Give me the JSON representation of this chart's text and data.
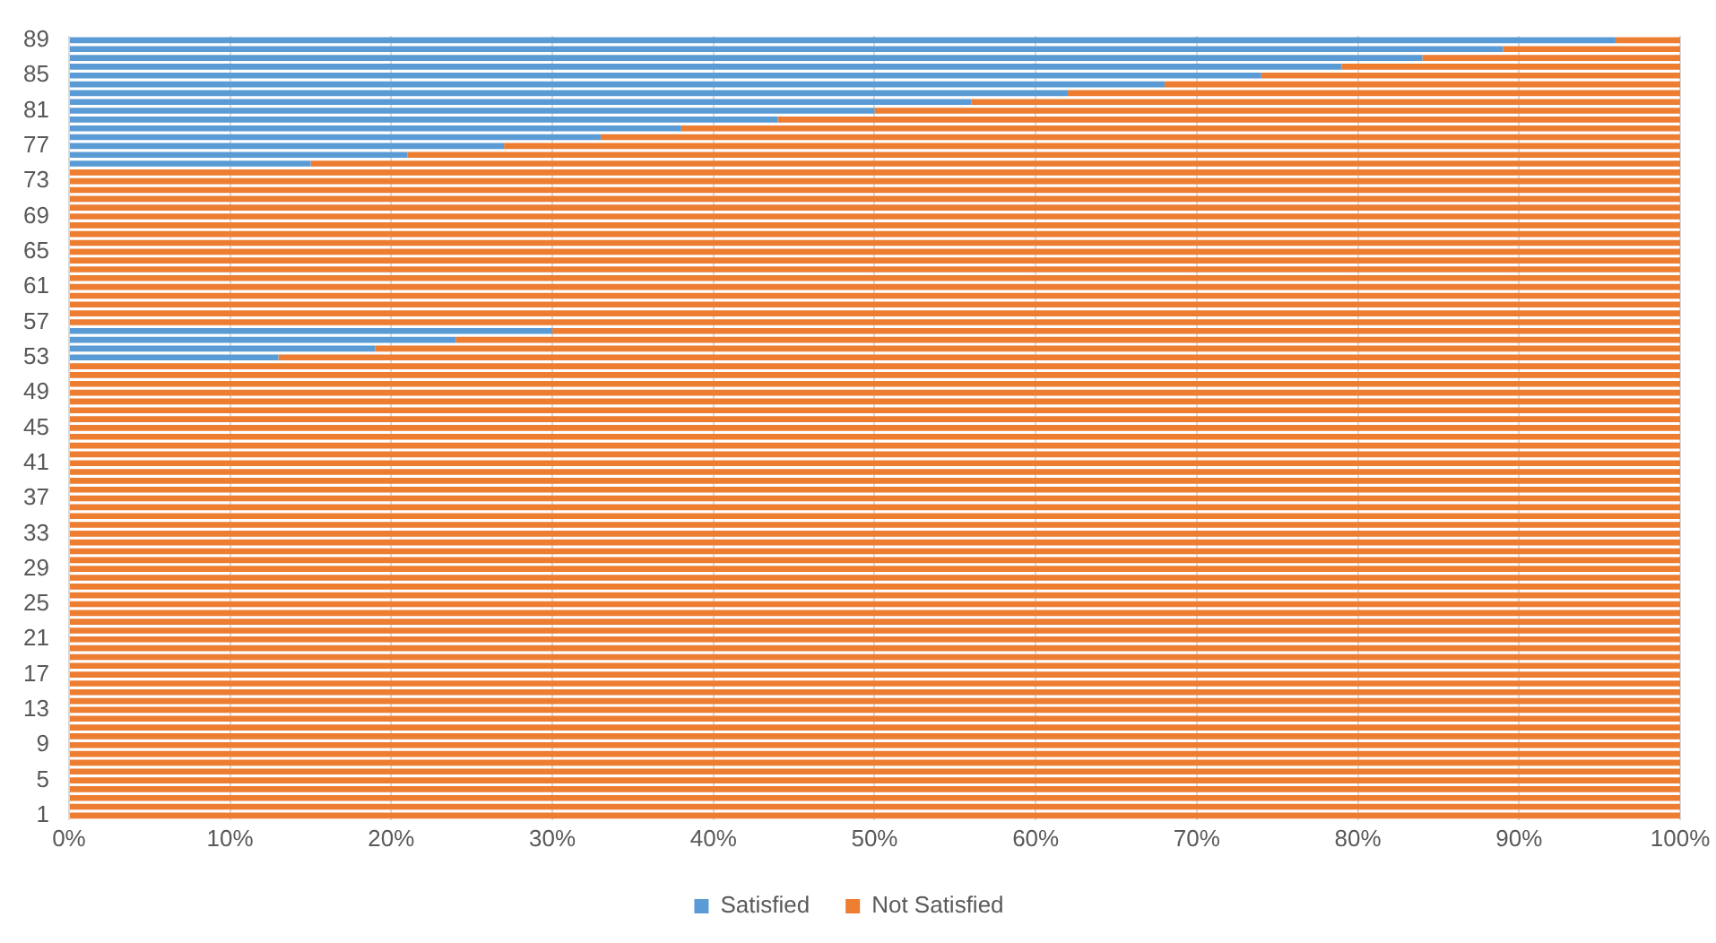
{
  "chart_data": {
    "type": "bar",
    "orientation": "horizontal",
    "stacked": true,
    "categories": [
      "89",
      null,
      null,
      null,
      "85",
      null,
      null,
      null,
      "81",
      null,
      null,
      null,
      "77",
      null,
      null,
      null,
      "73",
      null,
      null,
      null,
      "69",
      null,
      null,
      null,
      "65",
      null,
      null,
      null,
      "61",
      null,
      null,
      null,
      "57",
      null,
      null,
      null,
      "53",
      null,
      null,
      null,
      "49",
      null,
      null,
      null,
      "45",
      null,
      null,
      null,
      "41",
      null,
      null,
      null,
      "37",
      null,
      null,
      null,
      "33",
      null,
      null,
      null,
      "29",
      null,
      null,
      null,
      "25",
      null,
      null,
      null,
      "21",
      null,
      null,
      null,
      "17",
      null,
      null,
      null,
      "13",
      null,
      null,
      null,
      "9",
      null,
      null,
      null,
      "5",
      null,
      null,
      null,
      "1"
    ],
    "series": [
      {
        "name": "Satisfied",
        "color": "#5b9bd5",
        "values": [
          96,
          89,
          84,
          79,
          74,
          68,
          62,
          56,
          50,
          44,
          38,
          33,
          27,
          21,
          15,
          0,
          0,
          0,
          0,
          0,
          0,
          0,
          0,
          0,
          0,
          0,
          0,
          0,
          0,
          0,
          0,
          0,
          0,
          30,
          24,
          19,
          13,
          0,
          0,
          0,
          0,
          0,
          0,
          0,
          0,
          0,
          0,
          0,
          0,
          0,
          0,
          0,
          0,
          0,
          0,
          0,
          0,
          0,
          0,
          0,
          0,
          0,
          0,
          0,
          0,
          0,
          0,
          0,
          0,
          0,
          0,
          0,
          0,
          0,
          0,
          0,
          0,
          0,
          0,
          0,
          0,
          0,
          0,
          0,
          0,
          0,
          0,
          0,
          0
        ]
      },
      {
        "name": "Not Satisfied",
        "color": "#ed7d31",
        "values": [
          4,
          11,
          16,
          21,
          26,
          32,
          38,
          44,
          50,
          56,
          62,
          67,
          73,
          79,
          85,
          100,
          100,
          100,
          100,
          100,
          100,
          100,
          100,
          100,
          100,
          100,
          100,
          100,
          100,
          100,
          100,
          100,
          100,
          70,
          76,
          81,
          87,
          100,
          100,
          100,
          100,
          100,
          100,
          100,
          100,
          100,
          100,
          100,
          100,
          100,
          100,
          100,
          100,
          100,
          100,
          100,
          100,
          100,
          100,
          100,
          100,
          100,
          100,
          100,
          100,
          100,
          100,
          100,
          100,
          100,
          100,
          100,
          100,
          100,
          100,
          100,
          100,
          100,
          100,
          100,
          100,
          100,
          100,
          100,
          100,
          100,
          100,
          100,
          100
        ]
      }
    ],
    "xlim": [
      0,
      100
    ],
    "xticks": [
      {
        "value": 0,
        "label": "0%"
      },
      {
        "value": 10,
        "label": "10%"
      },
      {
        "value": 20,
        "label": "20%"
      },
      {
        "value": 30,
        "label": "30%"
      },
      {
        "value": 40,
        "label": "40%"
      },
      {
        "value": 50,
        "label": "50%"
      },
      {
        "value": 60,
        "label": "60%"
      },
      {
        "value": 70,
        "label": "70%"
      },
      {
        "value": 80,
        "label": "80%"
      },
      {
        "value": 90,
        "label": "90%"
      },
      {
        "value": 100,
        "label": "100%"
      }
    ],
    "grid": "x",
    "legend": "bottom"
  }
}
